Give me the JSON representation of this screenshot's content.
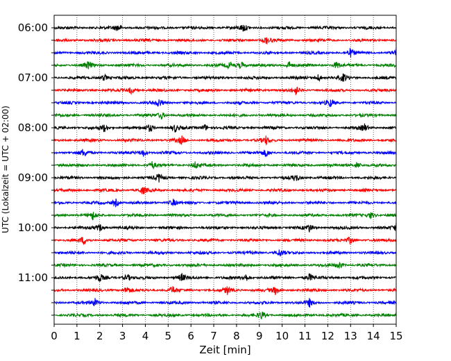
{
  "chart_data": {
    "type": "line",
    "title": "",
    "xlabel": "Zeit  [min]",
    "ylabel": "UTC (Lokalzeit = UTC + 02:00)",
    "xlim": [
      0,
      15
    ],
    "x_ticks": [
      "0",
      "1",
      "2",
      "3",
      "4",
      "5",
      "6",
      "7",
      "8",
      "9",
      "10",
      "11",
      "12",
      "13",
      "14",
      "15"
    ],
    "y_tick_labels": [
      "06:00",
      "07:00",
      "08:00",
      "09:00",
      "10:00",
      "11:00"
    ],
    "grid": "vertical dotted at each minute",
    "trace_interval_min": 15,
    "color_cycle": [
      "#000000",
      "#ff0000",
      "#0000ff",
      "#008000"
    ],
    "series": [
      {
        "start": "06:00",
        "color": "#000000",
        "events_min": [
          2.8,
          8.3
        ]
      },
      {
        "start": "06:15",
        "color": "#ff0000",
        "events_min": [
          9.3
        ]
      },
      {
        "start": "06:30",
        "color": "#0000ff",
        "events_min": [
          13.0,
          15.0
        ]
      },
      {
        "start": "06:45",
        "color": "#008000",
        "events_min": [
          1.5,
          7.7,
          8.2,
          10.3,
          12.4
        ]
      },
      {
        "start": "07:00",
        "color": "#000000",
        "events_min": [
          2.2,
          11.6,
          12.7
        ]
      },
      {
        "start": "07:15",
        "color": "#ff0000",
        "events_min": [
          3.4,
          10.6
        ]
      },
      {
        "start": "07:30",
        "color": "#0000ff",
        "events_min": [
          4.6,
          12.1
        ]
      },
      {
        "start": "07:45",
        "color": "#008000",
        "events_min": [
          4.7
        ]
      },
      {
        "start": "08:00",
        "color": "#000000",
        "events_min": [
          2.2,
          4.2,
          5.3,
          6.6,
          13.6
        ]
      },
      {
        "start": "08:15",
        "color": "#ff0000",
        "events_min": [
          5.6,
          9.3
        ]
      },
      {
        "start": "08:30",
        "color": "#0000ff",
        "events_min": [
          1.3,
          3.9,
          9.3
        ]
      },
      {
        "start": "08:45",
        "color": "#008000",
        "events_min": [
          4.3,
          6.2,
          13.3
        ]
      },
      {
        "start": "09:00",
        "color": "#000000",
        "events_min": [
          4.6,
          10.6
        ]
      },
      {
        "start": "09:15",
        "color": "#ff0000",
        "events_min": [
          3.9
        ]
      },
      {
        "start": "09:30",
        "color": "#0000ff",
        "events_min": [
          2.7,
          5.2
        ]
      },
      {
        "start": "09:45",
        "color": "#008000",
        "events_min": [
          1.7,
          13.9
        ]
      },
      {
        "start": "10:00",
        "color": "#000000",
        "events_min": [
          2.0,
          11.2,
          15.0
        ]
      },
      {
        "start": "10:15",
        "color": "#ff0000",
        "events_min": [
          1.3,
          13.0
        ]
      },
      {
        "start": "10:30",
        "color": "#0000ff",
        "events_min": [
          9.9
        ]
      },
      {
        "start": "10:45",
        "color": "#008000",
        "events_min": [
          12.5
        ]
      },
      {
        "start": "11:00",
        "color": "#000000",
        "events_min": [
          2.0,
          3.2,
          5.6,
          8.4,
          11.2
        ]
      },
      {
        "start": "11:15",
        "color": "#ff0000",
        "events_min": [
          3.2,
          5.2,
          7.6,
          9.7
        ]
      },
      {
        "start": "11:30",
        "color": "#0000ff",
        "events_min": [
          1.8,
          11.2
        ]
      },
      {
        "start": "11:45",
        "color": "#008000",
        "events_min": [
          9.1
        ]
      }
    ]
  }
}
